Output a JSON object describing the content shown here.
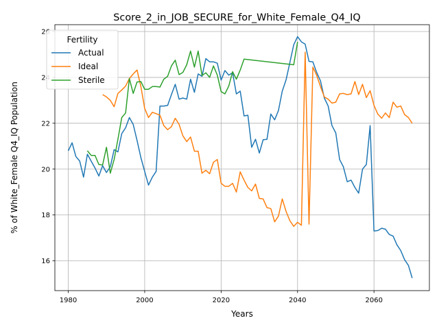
{
  "chart_data": {
    "type": "line",
    "title": "Score_2_in_JOB_SECURE_for_White_Female_Q4_IQ",
    "xlabel": "Years",
    "ylabel": "% of White_Female Q4_IQ Population",
    "xlim": [
      1976.5,
      2074.5
    ],
    "ylim": [
      14.7,
      26.3
    ],
    "xticks": [
      1980,
      2000,
      2020,
      2040,
      2060
    ],
    "yticks": [
      16,
      18,
      20,
      22,
      24,
      26
    ],
    "grid": true,
    "legend": {
      "title": "Fertility",
      "placement": "top-left"
    },
    "series": [
      {
        "name": "Actual",
        "color": "#1f77b4",
        "x": [
          1980,
          1981,
          1982,
          1983,
          1984,
          1985,
          1986,
          1987,
          1988,
          1989,
          1990,
          1991,
          1992,
          1993,
          1994,
          1995,
          1996,
          1997,
          1998,
          1999,
          2000,
          2001,
          2002,
          2003,
          2004,
          2005,
          2006,
          2007,
          2008,
          2009,
          2010,
          2011,
          2012,
          2013,
          2014,
          2015,
          2016,
          2017,
          2018,
          2019,
          2020,
          2021,
          2022,
          2023,
          2024,
          2025,
          2026,
          2027,
          2028,
          2029,
          2030,
          2031,
          2032,
          2033,
          2034,
          2035,
          2036,
          2037,
          2038,
          2039,
          2040,
          2041,
          2042,
          2043,
          2044,
          2045,
          2046,
          2047,
          2048,
          2049,
          2050,
          2051,
          2052,
          2053,
          2054,
          2055,
          2056,
          2057,
          2058,
          2059,
          2060,
          2061,
          2062,
          2063,
          2064,
          2065,
          2066,
          2067,
          2068,
          2069,
          2070
        ],
        "y": [
          20.8,
          21.15,
          20.55,
          20.35,
          19.65,
          20.65,
          20.35,
          20.05,
          19.7,
          20.15,
          19.85,
          20.1,
          20.85,
          20.75,
          21.55,
          21.8,
          22.25,
          21.95,
          21.25,
          20.5,
          19.9,
          19.3,
          19.65,
          19.9,
          22.75,
          22.75,
          22.78,
          23.25,
          23.7,
          23.05,
          23.1,
          23.05,
          23.92,
          23.35,
          24.15,
          24.05,
          24.82,
          24.68,
          24.68,
          24.62,
          23.88,
          24.3,
          24.1,
          24.2,
          23.28,
          23.4,
          22.32,
          22.35,
          20.95,
          21.3,
          20.7,
          21.28,
          21.3,
          22.4,
          22.15,
          22.55,
          23.4,
          23.9,
          24.65,
          25.42,
          25.78,
          25.55,
          25.45,
          24.7,
          24.68,
          24.22,
          23.85,
          23.1,
          22.75,
          21.9,
          21.58,
          20.42,
          20.1,
          19.45,
          19.52,
          19.2,
          18.95,
          20.0,
          20.2,
          21.9,
          17.3,
          17.32,
          17.42,
          17.38,
          17.15,
          17.08,
          16.7,
          16.45,
          16.05,
          15.8,
          15.25
        ]
      },
      {
        "name": "Ideal",
        "color": "#ff7f0e",
        "x": [
          1989,
          1990,
          1991,
          1992,
          1993,
          1994,
          1995,
          1996,
          1997,
          1998,
          1999,
          2000,
          2001,
          2002,
          2003,
          2004,
          2005,
          2006,
          2007,
          2008,
          2009,
          2010,
          2011,
          2012,
          2013,
          2014,
          2015,
          2016,
          2017,
          2018,
          2019,
          2020,
          2021,
          2022,
          2023,
          2024,
          2025,
          2026,
          2027,
          2028,
          2029,
          2030,
          2031,
          2032,
          2033,
          2034,
          2035,
          2036,
          2037,
          2038,
          2039,
          2040,
          2041,
          2042,
          2043,
          2044,
          2045,
          2046,
          2047,
          2048,
          2049,
          2050,
          2051,
          2052,
          2053,
          2054,
          2055,
          2056,
          2057,
          2058,
          2059,
          2060,
          2061,
          2062,
          2063,
          2064,
          2065,
          2066,
          2067,
          2068,
          2069,
          2070
        ],
        "y": [
          23.25,
          23.15,
          23.0,
          22.72,
          23.3,
          23.45,
          23.62,
          23.95,
          24.15,
          24.32,
          23.6,
          22.65,
          22.25,
          22.48,
          22.42,
          22.35,
          21.9,
          21.72,
          21.85,
          22.22,
          21.95,
          21.45,
          21.2,
          21.4,
          20.78,
          20.78,
          19.82,
          19.95,
          19.8,
          20.3,
          20.42,
          19.38,
          19.25,
          19.25,
          19.38,
          19.0,
          19.88,
          19.52,
          19.2,
          19.05,
          19.35,
          18.72,
          18.7,
          18.32,
          18.28,
          17.7,
          17.95,
          18.7,
          18.15,
          17.75,
          17.5,
          17.68,
          17.55,
          25.1,
          17.6,
          24.45,
          24.1,
          23.6,
          23.15,
          23.05,
          22.88,
          22.92,
          23.28,
          23.3,
          23.25,
          23.28,
          23.82,
          23.25,
          23.7,
          23.12,
          23.42,
          22.78,
          22.4,
          22.22,
          22.45,
          22.25,
          22.92,
          22.7,
          22.75,
          22.38,
          22.25,
          22.0
        ]
      },
      {
        "name": "Sterile",
        "color": "#2ca02c",
        "x": [
          1985,
          1986,
          1987,
          1988,
          1989,
          1990,
          1991,
          1992,
          1993,
          1994,
          1995,
          1996,
          1997,
          1998,
          1999,
          2000,
          2001,
          2002,
          2003,
          2004,
          2005,
          2006,
          2007,
          2008,
          2009,
          2010,
          2011,
          2012,
          2013,
          2014,
          2015,
          2016,
          2017,
          2018,
          2019,
          2020,
          2021,
          2022,
          2023,
          2024,
          2025,
          2026,
          2039,
          2040
        ],
        "y": [
          20.8,
          20.6,
          20.6,
          20.2,
          20.18,
          20.95,
          19.82,
          20.42,
          21.3,
          22.25,
          22.45,
          23.95,
          23.3,
          23.8,
          23.82,
          23.48,
          23.48,
          23.6,
          23.6,
          23.58,
          23.92,
          24.05,
          24.5,
          24.75,
          24.12,
          24.22,
          24.55,
          25.15,
          24.45,
          25.15,
          24.08,
          24.2,
          24.0,
          24.5,
          24.1,
          23.38,
          23.28,
          23.62,
          24.25,
          23.92,
          24.32,
          24.8,
          24.55,
          25.55
        ]
      }
    ]
  }
}
